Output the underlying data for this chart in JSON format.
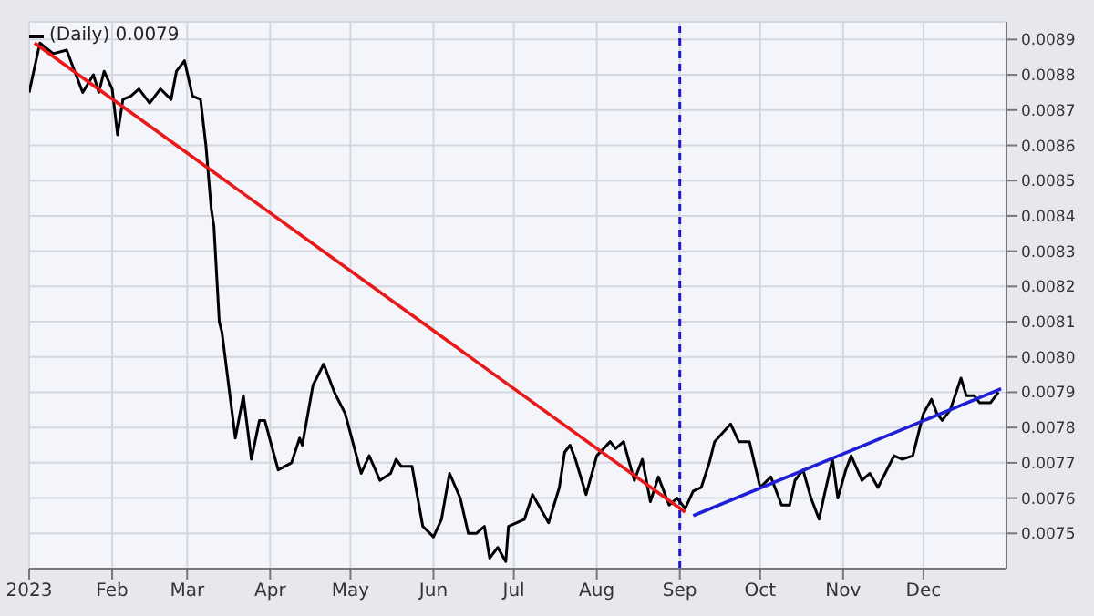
{
  "chart_data": {
    "type": "line",
    "title": "(Daily) 0.0079",
    "x": [
      "2023-01-01",
      "2023-01-05",
      "2023-01-10",
      "2023-01-15",
      "2023-01-21",
      "2023-01-25",
      "2023-01-27",
      "2023-01-29",
      "2023-02-01",
      "2023-02-03",
      "2023-02-05",
      "2023-02-08",
      "2023-02-11",
      "2023-02-15",
      "2023-02-19",
      "2023-02-23",
      "2023-02-25",
      "2023-02-28",
      "2023-03-03",
      "2023-03-06",
      "2023-03-08",
      "2023-03-10",
      "2023-03-11",
      "2023-03-13",
      "2023-03-14",
      "2023-03-16",
      "2023-03-19",
      "2023-03-22",
      "2023-03-25",
      "2023-03-28",
      "2023-03-30",
      "2023-04-04",
      "2023-04-09",
      "2023-04-12",
      "2023-04-13",
      "2023-04-17",
      "2023-04-21",
      "2023-04-25",
      "2023-04-29",
      "2023-05-05",
      "2023-05-08",
      "2023-05-12",
      "2023-05-14",
      "2023-05-16",
      "2023-05-18",
      "2023-05-20",
      "2023-05-24",
      "2023-05-28",
      "2023-06-01",
      "2023-06-04",
      "2023-06-07",
      "2023-06-11",
      "2023-06-14",
      "2023-06-17",
      "2023-06-20",
      "2023-06-22",
      "2023-06-25",
      "2023-06-28",
      "2023-06-29",
      "2023-07-05",
      "2023-07-08",
      "2023-07-14",
      "2023-07-18",
      "2023-07-20",
      "2023-07-22",
      "2023-07-24",
      "2023-07-28",
      "2023-08-01",
      "2023-08-06",
      "2023-08-08",
      "2023-08-11",
      "2023-08-15",
      "2023-08-18",
      "2023-08-21",
      "2023-08-24",
      "2023-08-28",
      "2023-08-31",
      "2023-09-03",
      "2023-09-06",
      "2023-09-09",
      "2023-09-12",
      "2023-09-14",
      "2023-09-20",
      "2023-09-23",
      "2023-09-27",
      "2023-10-01",
      "2023-10-05",
      "2023-10-09",
      "2023-10-12",
      "2023-10-14",
      "2023-10-17",
      "2023-10-20",
      "2023-10-23",
      "2023-10-25",
      "2023-10-28",
      "2023-10-30",
      "2023-11-02",
      "2023-11-04",
      "2023-11-08",
      "2023-11-11",
      "2023-11-14",
      "2023-11-20",
      "2023-11-23",
      "2023-11-27",
      "2023-12-01",
      "2023-12-04",
      "2023-12-06",
      "2023-12-08",
      "2023-12-11",
      "2023-12-15",
      "2023-12-17",
      "2023-12-20",
      "2023-12-22",
      "2023-12-26",
      "2023-12-29"
    ],
    "series": [
      {
        "color": "#000000",
        "values": [
          0.00875,
          0.00889,
          0.00886,
          0.00887,
          0.00875,
          0.0088,
          0.00875,
          0.00881,
          0.00876,
          0.00863,
          0.00873,
          0.00874,
          0.00876,
          0.00872,
          0.00876,
          0.00873,
          0.00881,
          0.00884,
          0.00874,
          0.00873,
          0.0086,
          0.00842,
          0.00837,
          0.0081,
          0.00807,
          0.00795,
          0.00777,
          0.00789,
          0.00771,
          0.00782,
          0.00782,
          0.00768,
          0.0077,
          0.00777,
          0.00775,
          0.00792,
          0.00798,
          0.0079,
          0.00784,
          0.00767,
          0.00772,
          0.00765,
          0.00766,
          0.00767,
          0.00771,
          0.00769,
          0.00769,
          0.00752,
          0.00749,
          0.00754,
          0.00767,
          0.0076,
          0.0075,
          0.0075,
          0.00752,
          0.00743,
          0.00746,
          0.00742,
          0.00752,
          0.00754,
          0.00761,
          0.00753,
          0.00763,
          0.00773,
          0.00775,
          0.00771,
          0.00761,
          0.00772,
          0.00776,
          0.00774,
          0.00776,
          0.00765,
          0.00771,
          0.00759,
          0.00766,
          0.00758,
          0.0076,
          0.00757,
          0.00762,
          0.00763,
          0.0077,
          0.00776,
          0.00781,
          0.00776,
          0.00776,
          0.00763,
          0.00766,
          0.00758,
          0.00758,
          0.00765,
          0.00768,
          0.0076,
          0.00754,
          0.00761,
          0.00771,
          0.0076,
          0.00768,
          0.00772,
          0.00765,
          0.00767,
          0.00763,
          0.00772,
          0.00771,
          0.00772,
          0.00784,
          0.00788,
          0.00784,
          0.00782,
          0.00785,
          0.00794,
          0.00789,
          0.00789,
          0.00787,
          0.00787,
          0.0079
        ]
      },
      {
        "type": "line",
        "color": "#e8191a",
        "x": [
          "2023-01-03",
          "2023-09-03"
        ],
        "values": [
          0.00889,
          0.00756
        ]
      },
      {
        "type": "line",
        "color": "#1f1fd6",
        "x": [
          "2023-09-06",
          "2023-12-30"
        ],
        "values": [
          0.00755,
          0.00791
        ]
      }
    ],
    "xlim": [
      "2023-01-01",
      "2024-01-01"
    ],
    "xticks": [
      {
        "value": "2023-01-01",
        "label": "2023"
      },
      {
        "value": "2023-02-01",
        "label": "Feb"
      },
      {
        "value": "2023-03-01",
        "label": "Mar"
      },
      {
        "value": "2023-04-01",
        "label": "Apr"
      },
      {
        "value": "2023-05-01",
        "label": "May"
      },
      {
        "value": "2023-06-01",
        "label": "Jun"
      },
      {
        "value": "2023-07-01",
        "label": "Jul"
      },
      {
        "value": "2023-08-01",
        "label": "Aug"
      },
      {
        "value": "2023-09-01",
        "label": "Sep"
      },
      {
        "value": "2023-10-01",
        "label": "Oct"
      },
      {
        "value": "2023-11-01",
        "label": "Nov"
      },
      {
        "value": "2023-12-01",
        "label": "Dec"
      }
    ],
    "ylim": [
      0.0074,
      0.00895
    ],
    "yticks": [
      0.0075,
      0.0076,
      0.0077,
      0.0078,
      0.0079,
      {
        "value": 0.008,
        "label": "0.0080"
      },
      0.0081,
      0.0082,
      0.0083,
      0.0084,
      0.0085,
      0.0086,
      0.0087,
      0.0088,
      0.0089
    ],
    "ref_lines": [
      {
        "axis": "x",
        "value": "2023-09-01",
        "color": "#1a1acc",
        "line_style": "dashed"
      }
    ],
    "grid": true
  }
}
